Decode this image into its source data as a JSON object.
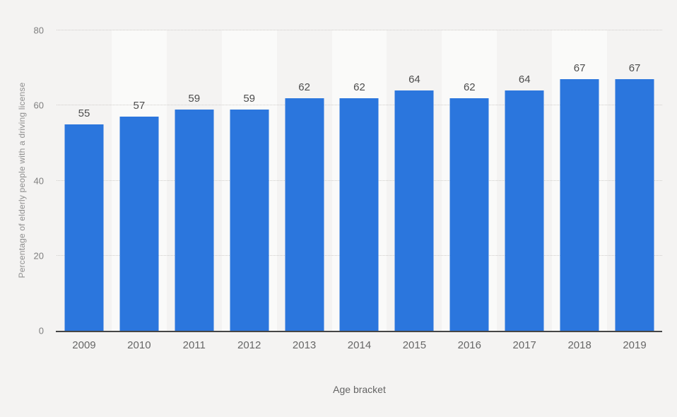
{
  "chart_data": {
    "type": "bar",
    "categories": [
      "2009",
      "2010",
      "2011",
      "2012",
      "2013",
      "2014",
      "2015",
      "2016",
      "2017",
      "2018",
      "2019"
    ],
    "values": [
      55,
      57,
      59,
      59,
      62,
      62,
      64,
      62,
      64,
      67,
      67
    ],
    "title": "",
    "xlabel": "Age bracket",
    "ylabel": "Percentage of elderly people with a driving license",
    "ylim": [
      0,
      80
    ],
    "yticks": [
      0,
      20,
      40,
      60,
      80
    ],
    "grid": "dotted-horizontal",
    "legend_position": "none",
    "colors": {
      "bar": "#2b76dd",
      "band": "#fafaf9",
      "background": "#f4f3f2",
      "axis_line": "#464646",
      "gridline": "#cfcdca",
      "value_label": "#4d4d4d",
      "tick_label": "#7f7f7f",
      "category_label": "#676767",
      "axis_title": "#8f8f8f"
    }
  }
}
